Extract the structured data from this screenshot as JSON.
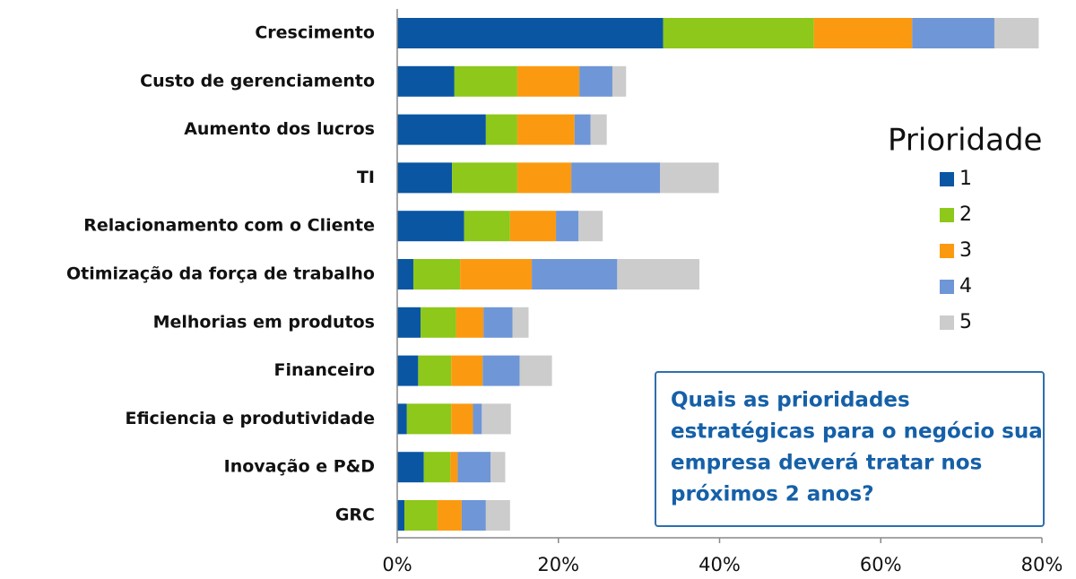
{
  "chart_data": {
    "type": "stacked-barh",
    "categories": [
      "Crescimento",
      "Custo de gerenciamento",
      "Aumento dos lucros",
      "TI",
      "Relacionamento com o Cliente",
      "Otimização da força de trabalho",
      "Melhorias em produtos",
      "Financeiro",
      "Eficiencia e produtividade",
      "Inovação e P&D",
      "GRC"
    ],
    "series": [
      {
        "name": "1",
        "color": "#0a56a3",
        "values": [
          33,
          7.1,
          11,
          6.8,
          8.3,
          2,
          2.9,
          2.6,
          1.2,
          3.3,
          0.9
        ]
      },
      {
        "name": "2",
        "color": "#8dc81a",
        "values": [
          18.7,
          7.8,
          3.9,
          8.1,
          5.7,
          5.8,
          4.4,
          4.1,
          5.5,
          3.3,
          4.1
        ]
      },
      {
        "name": "3",
        "color": "#fb9a10",
        "values": [
          12.2,
          7.7,
          7.1,
          6.7,
          5.7,
          8.9,
          3.4,
          3.9,
          2.7,
          0.9,
          3
        ]
      },
      {
        "name": "4",
        "color": "#6f96d6",
        "values": [
          10.2,
          4.1,
          2,
          11,
          2.8,
          10.6,
          3.6,
          4.6,
          1.1,
          4.1,
          3
        ]
      },
      {
        "name": "5",
        "color": "#cccccc",
        "values": [
          5.5,
          1.7,
          2,
          7.3,
          3,
          10.2,
          2,
          4,
          3.6,
          1.8,
          3
        ]
      }
    ],
    "xlim": [
      0,
      80
    ],
    "xticks": [
      {
        "value": 0,
        "label": "0%"
      },
      {
        "value": 20,
        "label": "20%"
      },
      {
        "value": 40,
        "label": "40%"
      },
      {
        "value": 60,
        "label": "60%"
      },
      {
        "value": 80,
        "label": "80%"
      }
    ],
    "legend_title": "Prioridade",
    "legend": "right",
    "annotation": [
      "Quais as prioridades",
      "estratégicas para o negócio sua",
      "empresa deverá tratar nos",
      "próximos 2 anos?"
    ]
  }
}
